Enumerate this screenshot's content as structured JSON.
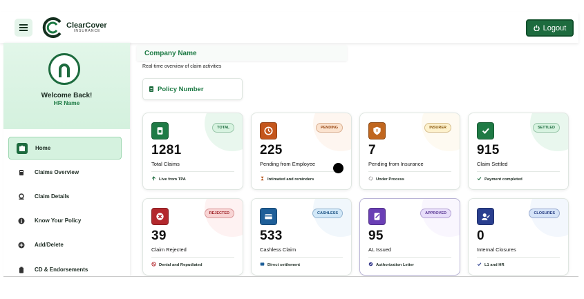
{
  "header": {
    "brand": "ClearCover",
    "brand_sub": "INSURANCE",
    "logout": "Logout"
  },
  "sidebar": {
    "welcome": "Welcome Back!",
    "user": "HR Name",
    "menu": [
      "Home",
      "Claims Overview",
      "Claim Details",
      "Know Your Policy",
      "Add/Delete",
      "CD & Endorsements"
    ]
  },
  "main": {
    "company": "Company Name",
    "subtitle": "Real-time overview of claim activities",
    "policy": "Policy Number",
    "cards": [
      {
        "badge": "TOTAL",
        "value": 1281,
        "label": "Total Claims",
        "note": "Live from TPA"
      },
      {
        "badge": "PENDING",
        "value": 225,
        "label": "Pending from Employee",
        "note": "Intimated and reminders"
      },
      {
        "badge": "INSURER",
        "value": 7,
        "label": "Pending from Insurance",
        "note": "Under Process"
      },
      {
        "badge": "SETTLED",
        "value": 915,
        "label": "Claim Settled",
        "note": "Payment completed"
      },
      {
        "badge": "REJECTED",
        "value": 39,
        "label": "Claim Rejected",
        "note": "Denial and Repudiated"
      },
      {
        "badge": "CASHLESS",
        "value": 533,
        "label": "Cashless Claim",
        "note": "Direct settlement"
      },
      {
        "badge": "APPROVED",
        "value": 95,
        "label": "AL Issued",
        "note": "Authorization Letter"
      },
      {
        "badge": "CLOSURES",
        "value": 0,
        "label": "Internal Closures",
        "note": "L1 and HR"
      }
    ]
  }
}
